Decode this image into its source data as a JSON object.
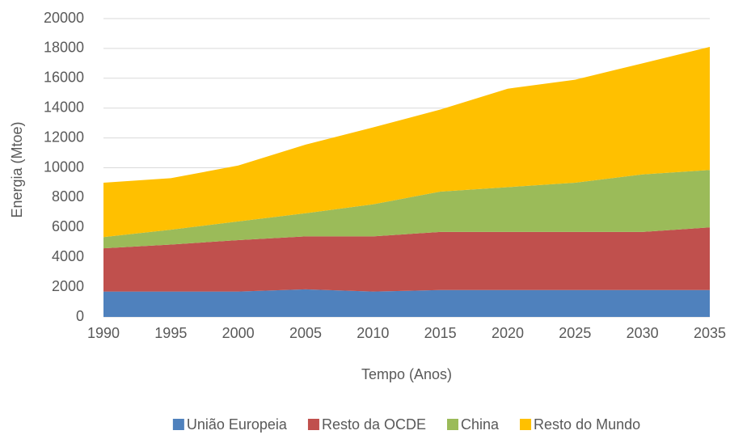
{
  "chart_data": {
    "type": "stacked_area",
    "x_label": "Tempo (Anos)",
    "y_label": "Energia (Mtoe)",
    "x": [
      1990,
      1995,
      2000,
      2005,
      2010,
      2015,
      2020,
      2025,
      2030,
      2035
    ],
    "xlim": [
      1990,
      2035
    ],
    "xticks": [
      1990,
      1995,
      2000,
      2005,
      2010,
      2015,
      2020,
      2025,
      2030,
      2035
    ],
    "ylim": [
      0,
      20000
    ],
    "yticks": [
      0,
      2000,
      4000,
      6000,
      8000,
      10000,
      12000,
      14000,
      16000,
      18000,
      20000
    ],
    "grid": true,
    "legend": "bottom",
    "series": [
      {
        "name": "União Europeia",
        "color": "#4f81bd",
        "values": [
          1700,
          1700,
          1700,
          1850,
          1700,
          1800,
          1800,
          1800,
          1800,
          1800
        ]
      },
      {
        "name": "Resto da OCDE",
        "color": "#c0504d",
        "values": [
          2900,
          3150,
          3450,
          3550,
          3700,
          3900,
          3900,
          3900,
          3900,
          4200
        ]
      },
      {
        "name": "China",
        "color": "#9bbb59",
        "values": [
          750,
          1000,
          1250,
          1550,
          2150,
          2700,
          3000,
          3300,
          3850,
          3850
        ]
      },
      {
        "name": "Resto do Mundo",
        "color": "#ffc000",
        "values": [
          3650,
          3450,
          3750,
          4600,
          5150,
          5500,
          6600,
          6900,
          7450,
          8250
        ]
      }
    ]
  }
}
